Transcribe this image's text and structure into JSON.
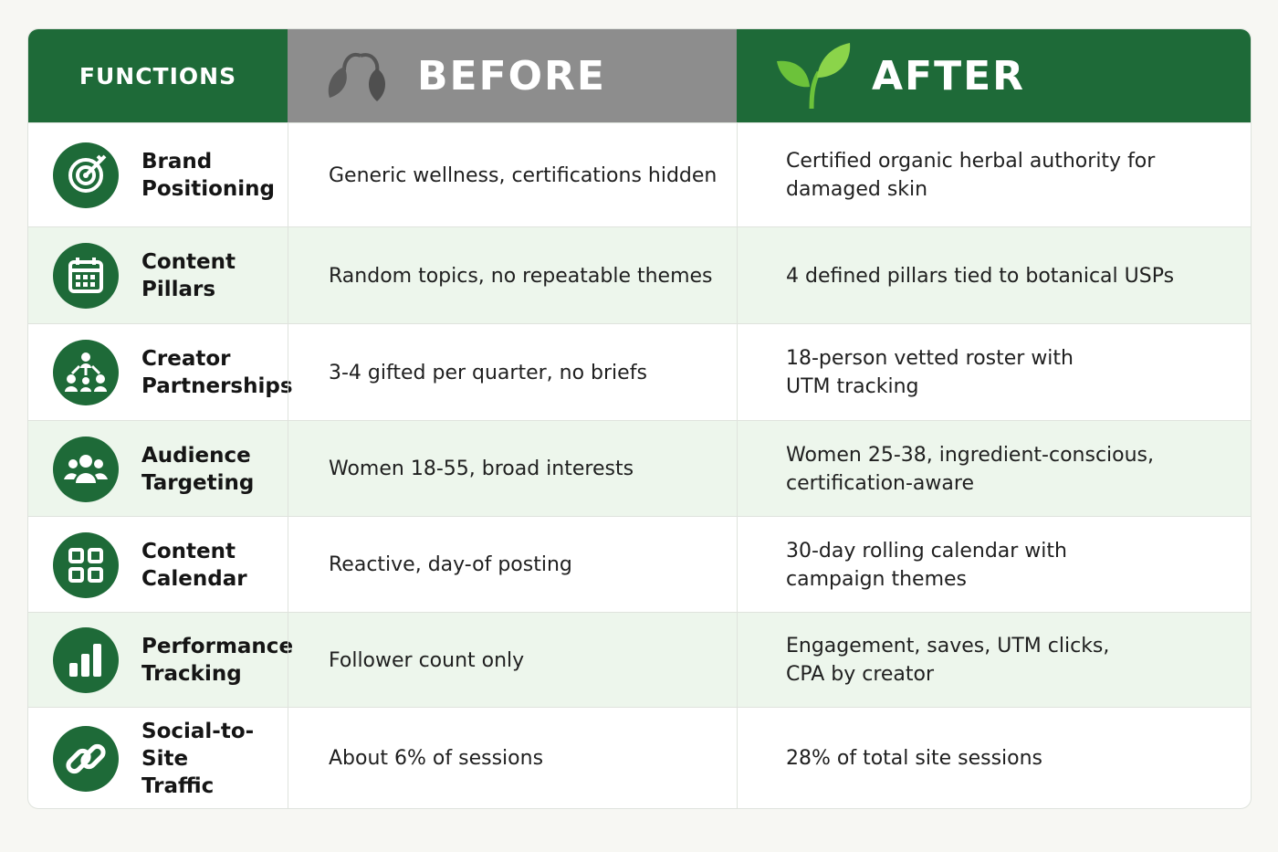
{
  "table": {
    "headers": [
      "FUNCTIONS",
      "BEFORE",
      "AFTER"
    ],
    "rows": [
      [
        "Brand\nPositioning",
        "Generic wellness, certifications hidden",
        "Certified organic herbal authority for\ndamaged skin"
      ],
      [
        "Content\nPillars",
        "Random topics, no repeatable themes",
        "4 defined pillars tied to botanical USPs"
      ],
      [
        "Creator\nPartnerships",
        "3-4 gifted per quarter, no briefs",
        "18-person vetted roster with\nUTM tracking"
      ],
      [
        "Audience\nTargeting",
        "Women 18-55, broad interests",
        "Women 25-38, ingredient-conscious,\ncertification-aware"
      ],
      [
        "Content\nCalendar",
        "Reactive, day-of posting",
        "30-day rolling calendar with\ncampaign themes"
      ],
      [
        "Performance\nTracking",
        "Follower count only",
        "Engagement, saves, UTM clicks,\nCPA by creator"
      ],
      [
        "Social-to-Site\nTraffic",
        "About 6% of sessions",
        "28% of total site sessions"
      ]
    ]
  }
}
